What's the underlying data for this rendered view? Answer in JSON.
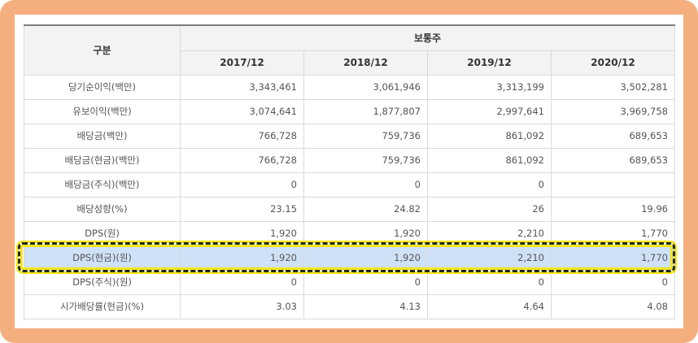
{
  "table": {
    "header_label": "구분",
    "group_label": "보통주",
    "years": [
      "2017/12",
      "2018/12",
      "2019/12",
      "2020/12"
    ],
    "rows": [
      {
        "label": "당기순이익(백만)",
        "values": [
          "3,343,461",
          "3,061,946",
          "3,313,199",
          "3,502,281"
        ]
      },
      {
        "label": "유보이익(백만)",
        "values": [
          "3,074,641",
          "1,877,807",
          "2,997,641",
          "3,969,758"
        ]
      },
      {
        "label": "배당금(백만)",
        "values": [
          "766,728",
          "759,736",
          "861,092",
          "689,653"
        ]
      },
      {
        "label": "배당금(현금)(백만)",
        "values": [
          "766,728",
          "759,736",
          "861,092",
          "689,653"
        ]
      },
      {
        "label": "배당금(주식)(백만)",
        "values": [
          "0",
          "0",
          "0",
          ""
        ]
      },
      {
        "label": "배당성향(%)",
        "values": [
          "23.15",
          "24.82",
          "26",
          "19.96"
        ]
      },
      {
        "label": "DPS(원)",
        "values": [
          "1,920",
          "1,920",
          "2,210",
          "1,770"
        ]
      },
      {
        "label": "DPS(현금)(원)",
        "values": [
          "1,920",
          "1,920",
          "2,210",
          "1,770"
        ]
      },
      {
        "label": "DPS(주식)(원)",
        "values": [
          "0",
          "0",
          "0",
          "0"
        ]
      },
      {
        "label": "시가배당률(현금)(%)",
        "values": [
          "3.03",
          "4.13",
          "4.64",
          "4.08"
        ]
      }
    ],
    "highlighted_row_index": 7
  },
  "colors": {
    "frame": "#f5ae7e",
    "header_bg": "#f3f3f3",
    "highlight_row": "#cfe1f7",
    "highlight_border": "#f7e51a",
    "highlight_dash": "#1d2a1f"
  }
}
